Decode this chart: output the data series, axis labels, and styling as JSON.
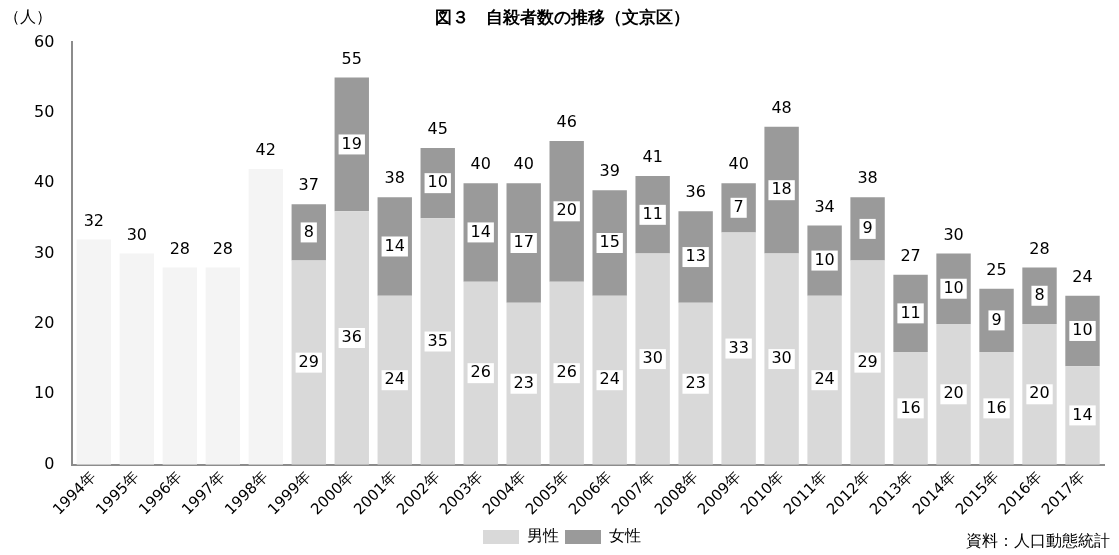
{
  "chart_data": {
    "type": "bar",
    "title": "図３　自殺者数の推移（文京区）",
    "ylabel": "（人）",
    "categories": [
      "1994年",
      "1995年",
      "1996年",
      "1997年",
      "1998年",
      "1999年",
      "2000年",
      "2001年",
      "2002年",
      "2003年",
      "2004年",
      "2005年",
      "2006年",
      "2007年",
      "2008年",
      "2009年",
      "2010年",
      "2011年",
      "2012年",
      "2013年",
      "2014年",
      "2015年",
      "2016年",
      "2017年"
    ],
    "stacked": true,
    "series": [
      {
        "color": "#f4f4f4",
        "values": [
          32,
          30,
          28,
          28,
          42,
          null,
          null,
          null,
          null,
          null,
          null,
          null,
          null,
          null,
          null,
          null,
          null,
          null,
          null,
          null,
          null,
          null,
          null,
          null
        ]
      },
      {
        "name": "男性",
        "color": "#d9d9d9",
        "values": [
          null,
          null,
          null,
          null,
          null,
          29,
          36,
          24,
          35,
          26,
          23,
          26,
          24,
          30,
          23,
          33,
          30,
          24,
          29,
          16,
          20,
          16,
          20,
          14
        ],
        "value_labels": [
          null,
          null,
          null,
          null,
          null,
          "29",
          "36",
          "24",
          "35",
          "26",
          "23",
          "26",
          "24",
          "30",
          "23",
          "33",
          "30",
          "24",
          "29",
          "16",
          "20",
          "16",
          "20",
          "14"
        ]
      },
      {
        "name": "女性",
        "color": "#9a9a9a",
        "values": [
          null,
          null,
          null,
          null,
          null,
          8,
          19,
          14,
          10,
          14,
          17,
          20,
          15,
          11,
          13,
          7,
          18,
          10,
          9,
          11,
          10,
          9,
          8,
          10
        ],
        "value_labels": [
          null,
          null,
          null,
          null,
          null,
          "8",
          "19",
          "14",
          "10",
          "14",
          "17",
          "20",
          "15",
          "11",
          "13",
          "7",
          "18",
          "10",
          "9",
          "11",
          "10",
          "9",
          "8",
          "10"
        ]
      }
    ],
    "totals": [
      "32",
      "30",
      "28",
      "28",
      "42",
      "37",
      "55",
      "38",
      "45",
      "40",
      "40",
      "46",
      "39",
      "41",
      "36",
      "40",
      "48",
      "34",
      "38",
      "27",
      "30",
      "25",
      "28",
      "24"
    ],
    "ylim": [
      0,
      60
    ],
    "yticks": [
      0,
      10,
      20,
      30,
      40,
      50,
      60
    ],
    "grid": false,
    "legend": "bottom",
    "annotations": [
      "資料：人口動態統計"
    ]
  }
}
